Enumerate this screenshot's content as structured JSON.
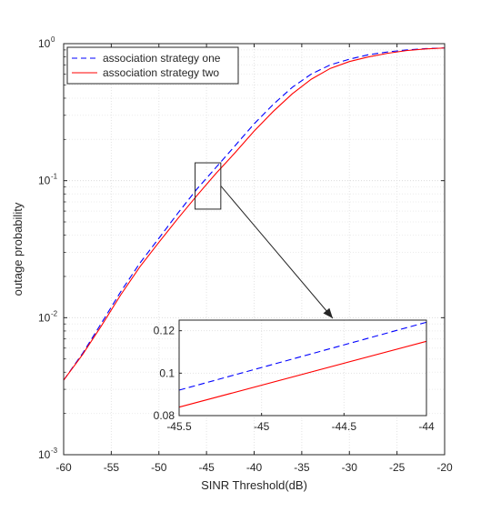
{
  "chart_data": [
    {
      "type": "line",
      "title": "",
      "xlabel": "SINR Threshold(dB)",
      "ylabel": "outage probability",
      "xlim": [
        -60,
        -20
      ],
      "ylim": [
        0.001,
        1
      ],
      "yscale": "log",
      "grid": true,
      "legend_position": "top-left",
      "x_ticks": [
        -60,
        -55,
        -50,
        -45,
        -40,
        -35,
        -30,
        -25,
        -20
      ],
      "x_tick_labels": [
        "-60",
        "-55",
        "-50",
        "-45",
        "-40",
        "-35",
        "-30",
        "-25",
        "-20"
      ],
      "y_ticks": [
        0.001,
        0.01,
        0.1,
        1
      ],
      "y_tick_labels": [
        {
          "base": "10",
          "exp": "-3"
        },
        {
          "base": "10",
          "exp": "-2"
        },
        {
          "base": "10",
          "exp": "-1"
        },
        {
          "base": "10",
          "exp": "0"
        }
      ],
      "x": [
        -60,
        -58,
        -56,
        -54,
        -52,
        -50,
        -48,
        -46,
        -44,
        -42,
        -40,
        -38,
        -36,
        -34,
        -32,
        -30,
        -28,
        -26,
        -24,
        -22,
        -20
      ],
      "series": [
        {
          "name": "association strategy one",
          "color": "#0000ff",
          "dash": "dashed",
          "values": [
            0.0035,
            0.0055,
            0.0092,
            0.0155,
            0.025,
            0.038,
            0.058,
            0.087,
            0.125,
            0.18,
            0.26,
            0.36,
            0.48,
            0.6,
            0.7,
            0.77,
            0.83,
            0.87,
            0.9,
            0.92,
            0.93
          ]
        },
        {
          "name": "association strategy two",
          "color": "#ff0000",
          "dash": "solid",
          "values": [
            0.0035,
            0.0054,
            0.0088,
            0.0147,
            0.0235,
            0.0355,
            0.053,
            0.078,
            0.113,
            0.16,
            0.23,
            0.32,
            0.43,
            0.55,
            0.66,
            0.74,
            0.8,
            0.85,
            0.89,
            0.915,
            0.93
          ]
        }
      ],
      "zoom_box": {
        "x": [
          -46.2,
          -43.5
        ],
        "y": [
          0.062,
          0.135
        ]
      }
    },
    {
      "type": "line",
      "title": "",
      "xlabel": "",
      "ylabel": "",
      "xlim": [
        -45.5,
        -44
      ],
      "ylim": [
        0.08,
        0.125
      ],
      "x_ticks": [
        -45.5,
        -45,
        -44.5,
        -44
      ],
      "x_tick_labels": [
        "-45.5",
        "-45",
        "-44.5",
        "-44"
      ],
      "y_ticks": [
        0.08,
        0.1,
        0.12
      ],
      "y_tick_labels": [
        "0.08",
        "0.1",
        "0.12"
      ],
      "grid": true,
      "x": [
        -45.5,
        -44
      ],
      "series": [
        {
          "color": "#0000ff",
          "dash": "dashed",
          "values": [
            0.092,
            0.124
          ]
        },
        {
          "color": "#ff0000",
          "dash": "solid",
          "values": [
            0.084,
            0.115
          ]
        }
      ]
    }
  ]
}
